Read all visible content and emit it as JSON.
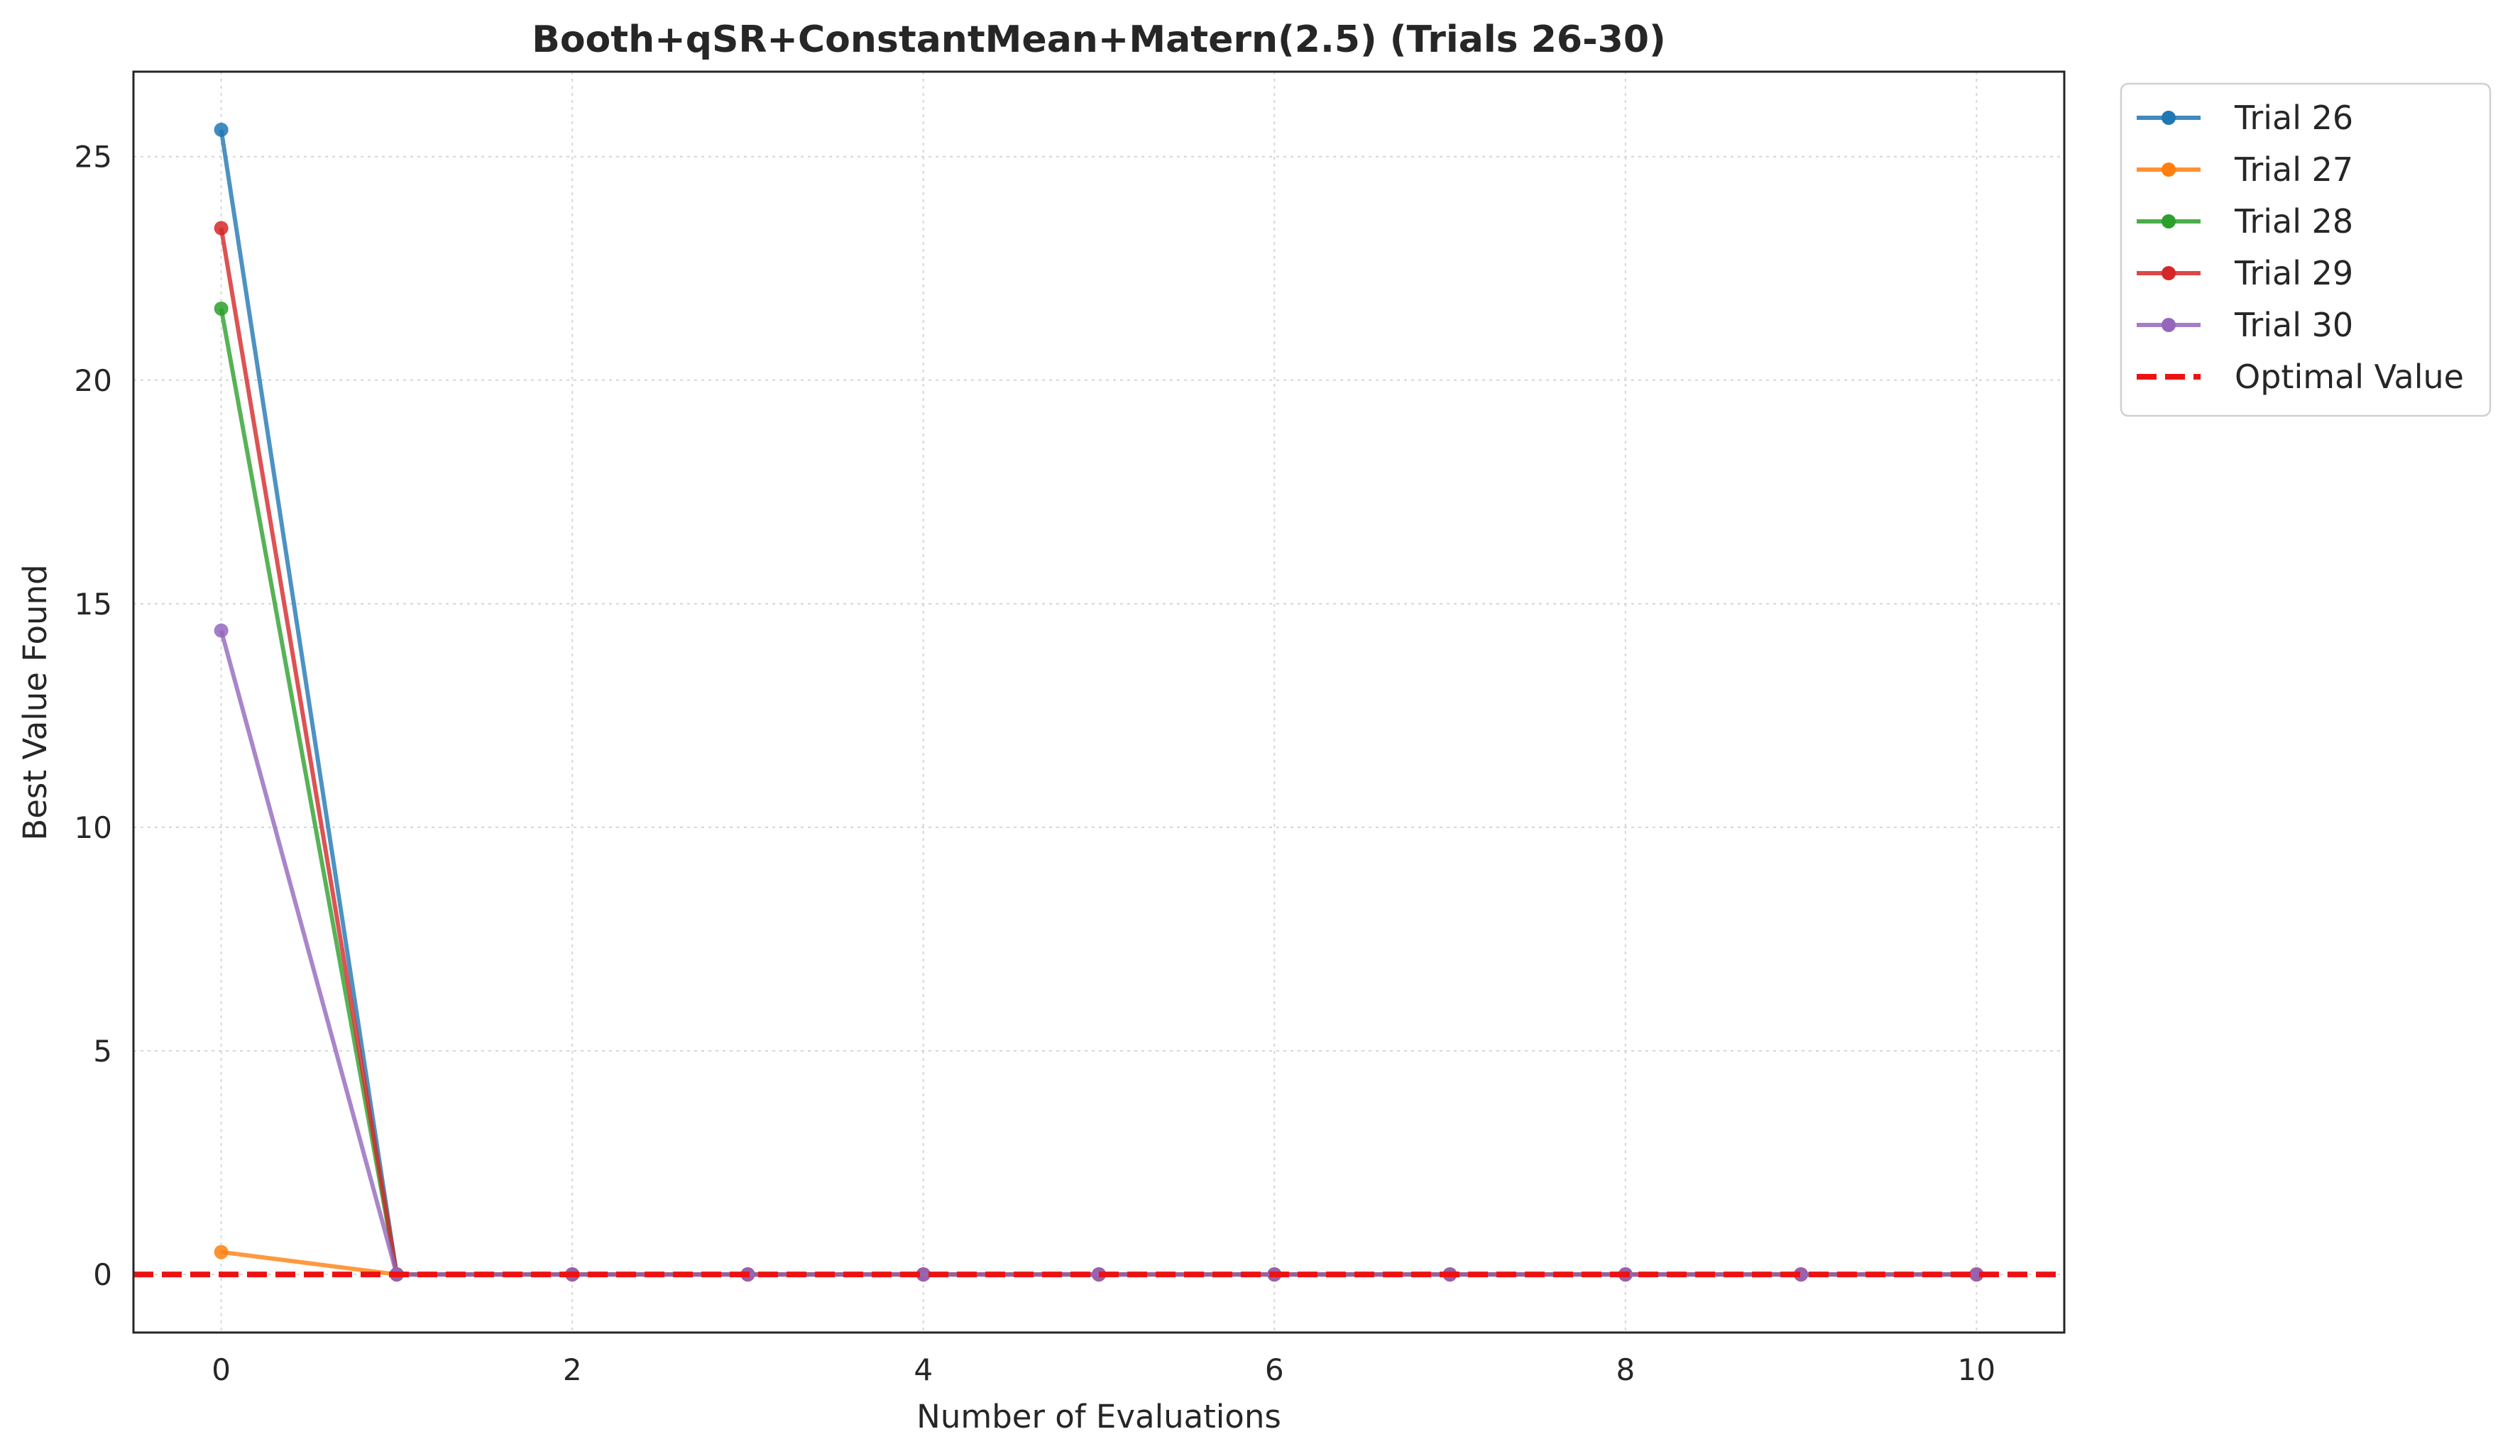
{
  "chart_data": {
    "type": "line",
    "title": "Booth+qSR+ConstantMean+Matern(2.5) (Trials 26-30)",
    "xlabel": "Number of Evaluations",
    "ylabel": "Best Value Found",
    "xlim": [
      -0.5,
      10.5
    ],
    "ylim": [
      -1.3,
      26.9
    ],
    "xticks": [
      0,
      2,
      4,
      6,
      8,
      10
    ],
    "yticks": [
      0,
      5,
      10,
      15,
      20,
      25
    ],
    "grid": true,
    "legend_position": "outside-top-right",
    "x": [
      0,
      1,
      2,
      3,
      4,
      5,
      6,
      7,
      8,
      9,
      10
    ],
    "series": [
      {
        "name": "Trial 26",
        "color": "#1f77b4",
        "values": [
          25.6,
          0,
          0,
          0,
          0,
          0,
          0,
          0,
          0,
          0,
          0
        ]
      },
      {
        "name": "Trial 27",
        "color": "#ff7f0e",
        "values": [
          0.5,
          0,
          0,
          0,
          0,
          0,
          0,
          0,
          0,
          0,
          0
        ]
      },
      {
        "name": "Trial 28",
        "color": "#2ca02c",
        "values": [
          21.6,
          0,
          0,
          0,
          0,
          0,
          0,
          0,
          0,
          0,
          0
        ]
      },
      {
        "name": "Trial 29",
        "color": "#d62728",
        "values": [
          23.4,
          0,
          0,
          0,
          0,
          0,
          0,
          0,
          0,
          0,
          0
        ]
      },
      {
        "name": "Trial 30",
        "color": "#9467bd",
        "values": [
          14.4,
          0,
          0,
          0,
          0,
          0,
          0,
          0,
          0,
          0,
          0
        ]
      }
    ],
    "reference_line": {
      "name": "Optimal Value",
      "value": 0,
      "color": "#ee1111",
      "style": "dashed"
    }
  }
}
